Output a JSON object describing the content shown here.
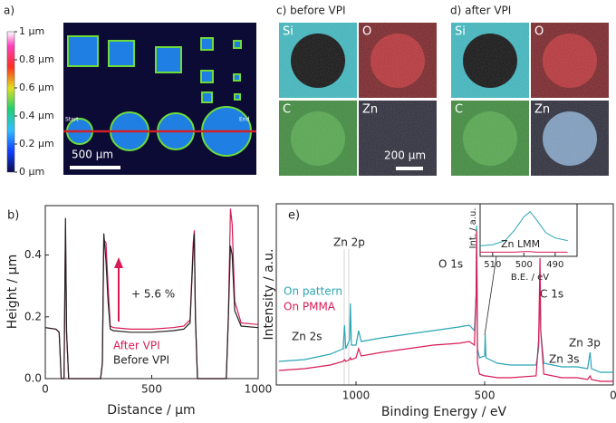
{
  "panel_a": {
    "label": "a)",
    "start": "Start",
    "end": "End",
    "scale_bar": "500 µm",
    "colorbar": {
      "lim": [
        0,
        1
      ],
      "ticks": [
        {
          "value": 0,
          "label": "0 µm"
        },
        {
          "value": 0.2,
          "label": "0.2 µm"
        },
        {
          "value": 0.4,
          "label": "0.4 µm"
        },
        {
          "value": 0.6,
          "label": "0.6 µm"
        },
        {
          "value": 0.8,
          "label": "0.8 µm"
        },
        {
          "value": 1,
          "label": "1 µm"
        }
      ]
    }
  },
  "panel_c": {
    "label": "c) before VPI",
    "maps": [
      "Si",
      "O",
      "C",
      "Zn"
    ],
    "scale_bar": "200 µm"
  },
  "panel_d": {
    "label": "d) after VPI",
    "maps": [
      "Si",
      "O",
      "C",
      "Zn"
    ]
  },
  "chart_data": [
    {
      "type": "line",
      "panel": "b)",
      "x_label": "Distance / µm",
      "y_label": "Height / µm",
      "x": [
        0,
        50,
        65,
        75,
        88,
        95,
        100,
        110,
        260,
        268,
        275,
        285,
        295,
        305,
        320,
        400,
        500,
        600,
        650,
        680,
        695,
        700,
        705,
        715,
        850,
        860,
        870,
        878,
        890,
        920,
        1000
      ],
      "series": [
        {
          "name": "After VPI",
          "color": "#d81b55",
          "values": [
            0.165,
            0.16,
            0.15,
            0,
            0,
            0.48,
            0.15,
            0,
            0,
            0.05,
            0.45,
            0.44,
            0.3,
            0.17,
            0.165,
            0.16,
            0.16,
            0.165,
            0.17,
            0.19,
            0.44,
            0.48,
            0.2,
            0,
            0,
            0.2,
            0.55,
            0.5,
            0.25,
            0.18,
            0.175
          ]
        },
        {
          "name": "Before VPI",
          "color": "#222222",
          "values": [
            0.165,
            0.16,
            0.15,
            0,
            0,
            0.52,
            0.15,
            0,
            0,
            0.05,
            0.47,
            0.38,
            0.25,
            0.16,
            0.155,
            0.15,
            0.15,
            0.155,
            0.16,
            0.18,
            0.42,
            0.47,
            0.2,
            0,
            0,
            0.2,
            0.43,
            0.4,
            0.22,
            0.17,
            0.165
          ]
        }
      ],
      "annotations": [
        "+ 5.6 %"
      ],
      "xlim": [
        0,
        1000
      ],
      "xticks": [
        0,
        500,
        1000
      ],
      "ylim": [
        0,
        0.56
      ],
      "yticks": [
        {
          "value": 0,
          "label": "0.0"
        },
        0.2,
        0.4
      ]
    },
    {
      "type": "line",
      "panel": "e)",
      "x_label": "Binding Energy / eV",
      "y_label": "Intensity / a.u.",
      "x": [
        1300,
        1200,
        1100,
        1050,
        1045,
        1040,
        1025,
        1022,
        1018,
        1000,
        990,
        980,
        900,
        800,
        700,
        600,
        560,
        540,
        533,
        531,
        528,
        520,
        500,
        498,
        495,
        450,
        400,
        300,
        290,
        285,
        282,
        270,
        200,
        140,
        100,
        90,
        85,
        50,
        0
      ],
      "series": [
        {
          "name": "On pattern",
          "color": "#2aa5b3",
          "values": [
            0.13,
            0.14,
            0.17,
            0.2,
            0.33,
            0.2,
            0.25,
            0.45,
            0.22,
            0.22,
            0.3,
            0.24,
            0.26,
            0.28,
            0.3,
            0.32,
            0.33,
            0.3,
            0.5,
            0.88,
            0.2,
            0.15,
            0.16,
            0.28,
            0.15,
            0.12,
            0.11,
            0.11,
            0.2,
            0.55,
            0.3,
            0.12,
            0.1,
            0.1,
            0.09,
            0.18,
            0.09,
            0.07,
            0.07
          ]
        },
        {
          "name": "On PMMA",
          "color": "#d81b55",
          "values": [
            0.08,
            0.09,
            0.11,
            0.13,
            0.14,
            0.13,
            0.14,
            0.15,
            0.14,
            0.15,
            0.2,
            0.16,
            0.18,
            0.2,
            0.22,
            0.23,
            0.24,
            0.22,
            0.5,
            0.85,
            0.12,
            0.06,
            0.05,
            0.05,
            0.05,
            0.04,
            0.04,
            0.05,
            0.25,
            0.7,
            0.3,
            0.06,
            0.04,
            0.04,
            0.03,
            0.05,
            0.03,
            0.02,
            0.02
          ]
        }
      ],
      "annotations": [
        "Zn 2s",
        "Zn 2p",
        "O 1s",
        "C 1s",
        "Zn 3s",
        "Zn 3p"
      ],
      "xlim": [
        1310,
        0
      ],
      "xticks": [
        1000,
        500,
        0
      ],
      "ylim": [
        0,
        1
      ]
    },
    {
      "type": "line",
      "x_label": "B.E. / eV",
      "y_label": "Int. / a.u.",
      "x": [
        514,
        510,
        506,
        503,
        500,
        498,
        496,
        493,
        490,
        486
      ],
      "series": [
        {
          "color": "#2aa5b3",
          "values": [
            0.2,
            0.22,
            0.3,
            0.5,
            0.75,
            0.85,
            0.7,
            0.45,
            0.35,
            0.3
          ]
        },
        {
          "color": "#d81b55",
          "values": [
            0.08,
            0.08,
            0.08,
            0.08,
            0.09,
            0.09,
            0.08,
            0.08,
            0.08,
            0.08
          ]
        }
      ],
      "annotations": [
        "Zn LMM"
      ],
      "xlim": [
        514,
        483
      ],
      "xticks": [
        510,
        500,
        490
      ],
      "ylim": [
        0,
        1
      ]
    }
  ]
}
